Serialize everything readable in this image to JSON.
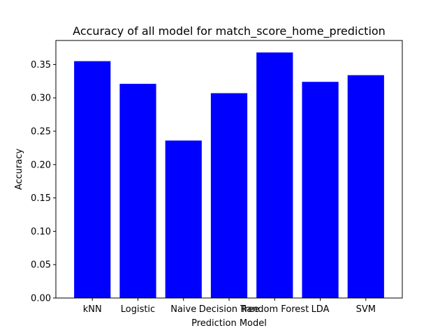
{
  "chart_data": {
    "type": "bar",
    "title": "Accuracy of all model for match_score_home_prediction",
    "xlabel": "Prediction Model",
    "ylabel": "Accuracy",
    "categories": [
      "kNN",
      "Logistic",
      "Naive",
      "Decision Tree",
      "Random Forest",
      "LDA",
      "SVM"
    ],
    "values": [
      0.355,
      0.321,
      0.236,
      0.307,
      0.368,
      0.324,
      0.334
    ],
    "ylim": [
      0,
      0.386
    ],
    "yticks": [
      0.0,
      0.05,
      0.1,
      0.15,
      0.2,
      0.25,
      0.3,
      0.35
    ],
    "ytick_labels": [
      "0.00",
      "0.05",
      "0.10",
      "0.15",
      "0.20",
      "0.25",
      "0.30",
      "0.35"
    ],
    "bar_color": "#0000ff",
    "grid": false,
    "legend": "none"
  }
}
